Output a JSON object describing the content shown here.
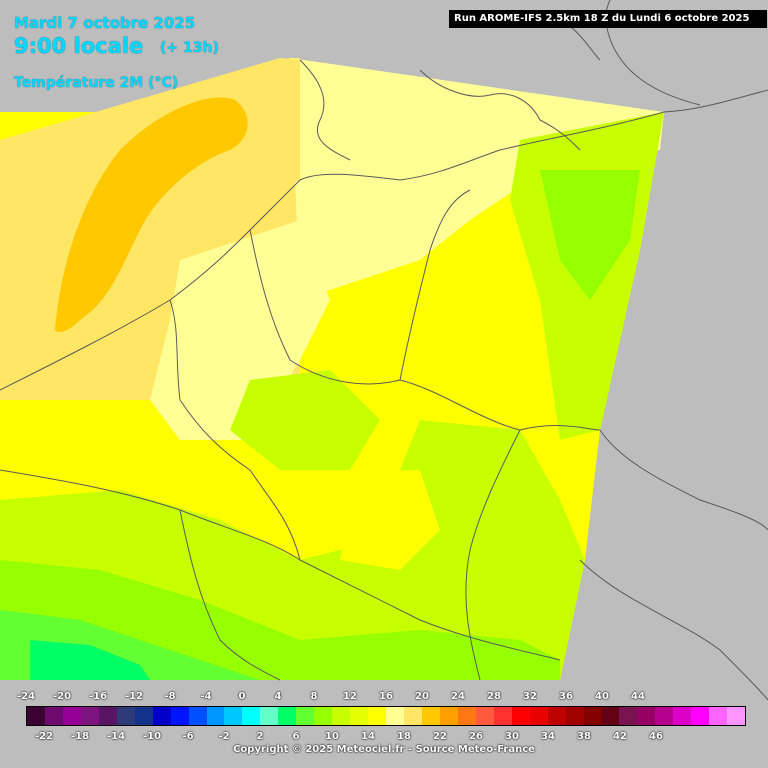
{
  "header": {
    "date": "Mardi 7 octobre 2025",
    "time": "9:00 locale",
    "offset": "(+ 13h)",
    "parameter": "Température 2M (°C)",
    "run": "Run AROME-IFS 2.5km 18 Z du Lundi 6 octobre 2025"
  },
  "legend": {
    "top_labels": [
      "-24",
      "-20",
      "-16",
      "-12",
      "-8",
      "-4",
      "0",
      "4",
      "8",
      "12",
      "16",
      "20",
      "24",
      "28",
      "32",
      "36",
      "40",
      "44"
    ],
    "bottom_labels": [
      "-22",
      "-18",
      "-14",
      "-10",
      "-6",
      "-2",
      "2",
      "6",
      "10",
      "14",
      "18",
      "22",
      "26",
      "30",
      "34",
      "38",
      "42",
      "46"
    ],
    "colors": [
      "#3c0032",
      "#6e0a6e",
      "#960096",
      "#7d147d",
      "#5a1464",
      "#2d3c78",
      "#14328c",
      "#0000c8",
      "#0014ff",
      "#0050ff",
      "#0096ff",
      "#00c8ff",
      "#00ffff",
      "#64ffc8",
      "#00ff64",
      "#64ff32",
      "#96ff00",
      "#c8ff00",
      "#e6ff00",
      "#ffff00",
      "#ffff96",
      "#ffe664",
      "#ffc800",
      "#ffa000",
      "#ff7814",
      "#ff5a3c",
      "#ff3232",
      "#ff0000",
      "#e60000",
      "#be0000",
      "#a00000",
      "#820000",
      "#640014",
      "#781450",
      "#960064",
      "#b4008c",
      "#dc00c8",
      "#ff00ff",
      "#ff64ff",
      "#ff96ff"
    ]
  },
  "copyright": "Copyright © 2025 Meteociel.fr - Source Meteo-France"
}
